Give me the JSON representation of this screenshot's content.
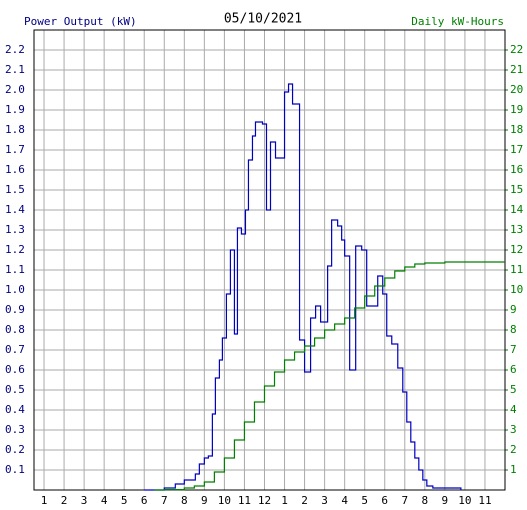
{
  "chart_data": {
    "type": "step-line",
    "title": "05/10/2021",
    "y_label": "Power Output (kW)",
    "y2_label": "Daily kW-Hours",
    "xlim": [
      0.5,
      24
    ],
    "xticks": [
      1,
      2,
      3,
      4,
      5,
      6,
      7,
      8,
      9,
      10,
      11,
      12,
      {
        "value": 13,
        "label": "1"
      },
      {
        "value": 14,
        "label": "2"
      },
      {
        "value": 15,
        "label": "3"
      },
      {
        "value": 16,
        "label": "4"
      },
      {
        "value": 17,
        "label": "5"
      },
      {
        "value": 18,
        "label": "6"
      },
      {
        "value": 19,
        "label": "7"
      },
      {
        "value": 20,
        "label": "8"
      },
      {
        "value": 21,
        "label": "9"
      },
      {
        "value": 22,
        "label": "10"
      },
      {
        "value": 23,
        "label": "11"
      }
    ],
    "ylim": [
      0,
      2.3
    ],
    "yticks": [
      0.1,
      0.2,
      0.3,
      0.4,
      0.5,
      0.6,
      0.7,
      0.8,
      0.9,
      {
        "value": 1,
        "label": "1.0"
      },
      1.1,
      1.2,
      1.3,
      1.4,
      1.5,
      1.6,
      1.7,
      1.8,
      1.9,
      {
        "value": 2,
        "label": "2.0"
      },
      2.1,
      2.2
    ],
    "y2lim": [
      0,
      23
    ],
    "y2ticks": [
      1,
      2,
      3,
      4,
      5,
      6,
      7,
      8,
      9,
      10,
      11,
      12,
      13,
      14,
      15,
      16,
      17,
      18,
      19,
      20,
      21,
      22
    ],
    "grid": true,
    "y_color": "#000080",
    "y2_color": "#008000",
    "series": [
      {
        "color": "#0000c0",
        "axis": "y",
        "x": [
          6.0,
          7.0,
          7.55,
          8.0,
          8.55,
          8.75,
          9.0,
          9.2,
          9.4,
          9.55,
          9.75,
          9.9,
          10.1,
          10.3,
          10.5,
          10.65,
          10.85,
          11.05,
          11.2,
          11.4,
          11.55,
          11.9,
          12.1,
          12.3,
          12.55,
          13.0,
          13.2,
          13.4,
          13.75,
          14.0,
          14.3,
          14.55,
          14.8,
          15.15,
          15.35,
          15.65,
          15.85,
          16.0,
          16.25,
          16.55,
          16.85,
          17.1,
          17.65,
          17.9,
          18.1,
          18.35,
          18.65,
          18.9,
          19.1,
          19.3,
          19.5,
          19.7,
          19.9,
          20.1,
          20.4,
          21.8
        ],
        "values": [
          0.0,
          0.01,
          0.03,
          0.05,
          0.08,
          0.13,
          0.16,
          0.17,
          0.38,
          0.56,
          0.65,
          0.76,
          0.98,
          1.2,
          0.78,
          1.31,
          1.28,
          1.4,
          1.65,
          1.77,
          1.84,
          1.83,
          1.4,
          1.74,
          1.66,
          1.99,
          2.03,
          1.93,
          0.75,
          0.59,
          0.86,
          0.92,
          0.84,
          1.12,
          1.35,
          1.32,
          1.25,
          1.17,
          0.6,
          1.22,
          1.2,
          0.92,
          1.07,
          0.98,
          0.77,
          0.73,
          0.61,
          0.49,
          0.34,
          0.24,
          0.16,
          0.1,
          0.05,
          0.02,
          0.01,
          0.0
        ]
      },
      {
        "color": "#008000",
        "axis": "y2",
        "x": [
          6.5,
          7,
          8,
          8.5,
          9,
          9.5,
          10,
          10.5,
          11,
          11.5,
          12,
          12.5,
          13,
          13.5,
          14,
          14.5,
          15,
          15.5,
          16,
          16.5,
          17,
          17.5,
          18,
          18.5,
          19,
          19.5,
          20,
          21,
          24
        ],
        "values": [
          0,
          0.02,
          0.1,
          0.2,
          0.4,
          0.9,
          1.6,
          2.5,
          3.4,
          4.4,
          5.2,
          5.9,
          6.5,
          6.9,
          7.2,
          7.6,
          8.0,
          8.3,
          8.6,
          9.1,
          9.7,
          10.2,
          10.6,
          10.95,
          11.15,
          11.3,
          11.35,
          11.4,
          11.4
        ]
      }
    ]
  }
}
